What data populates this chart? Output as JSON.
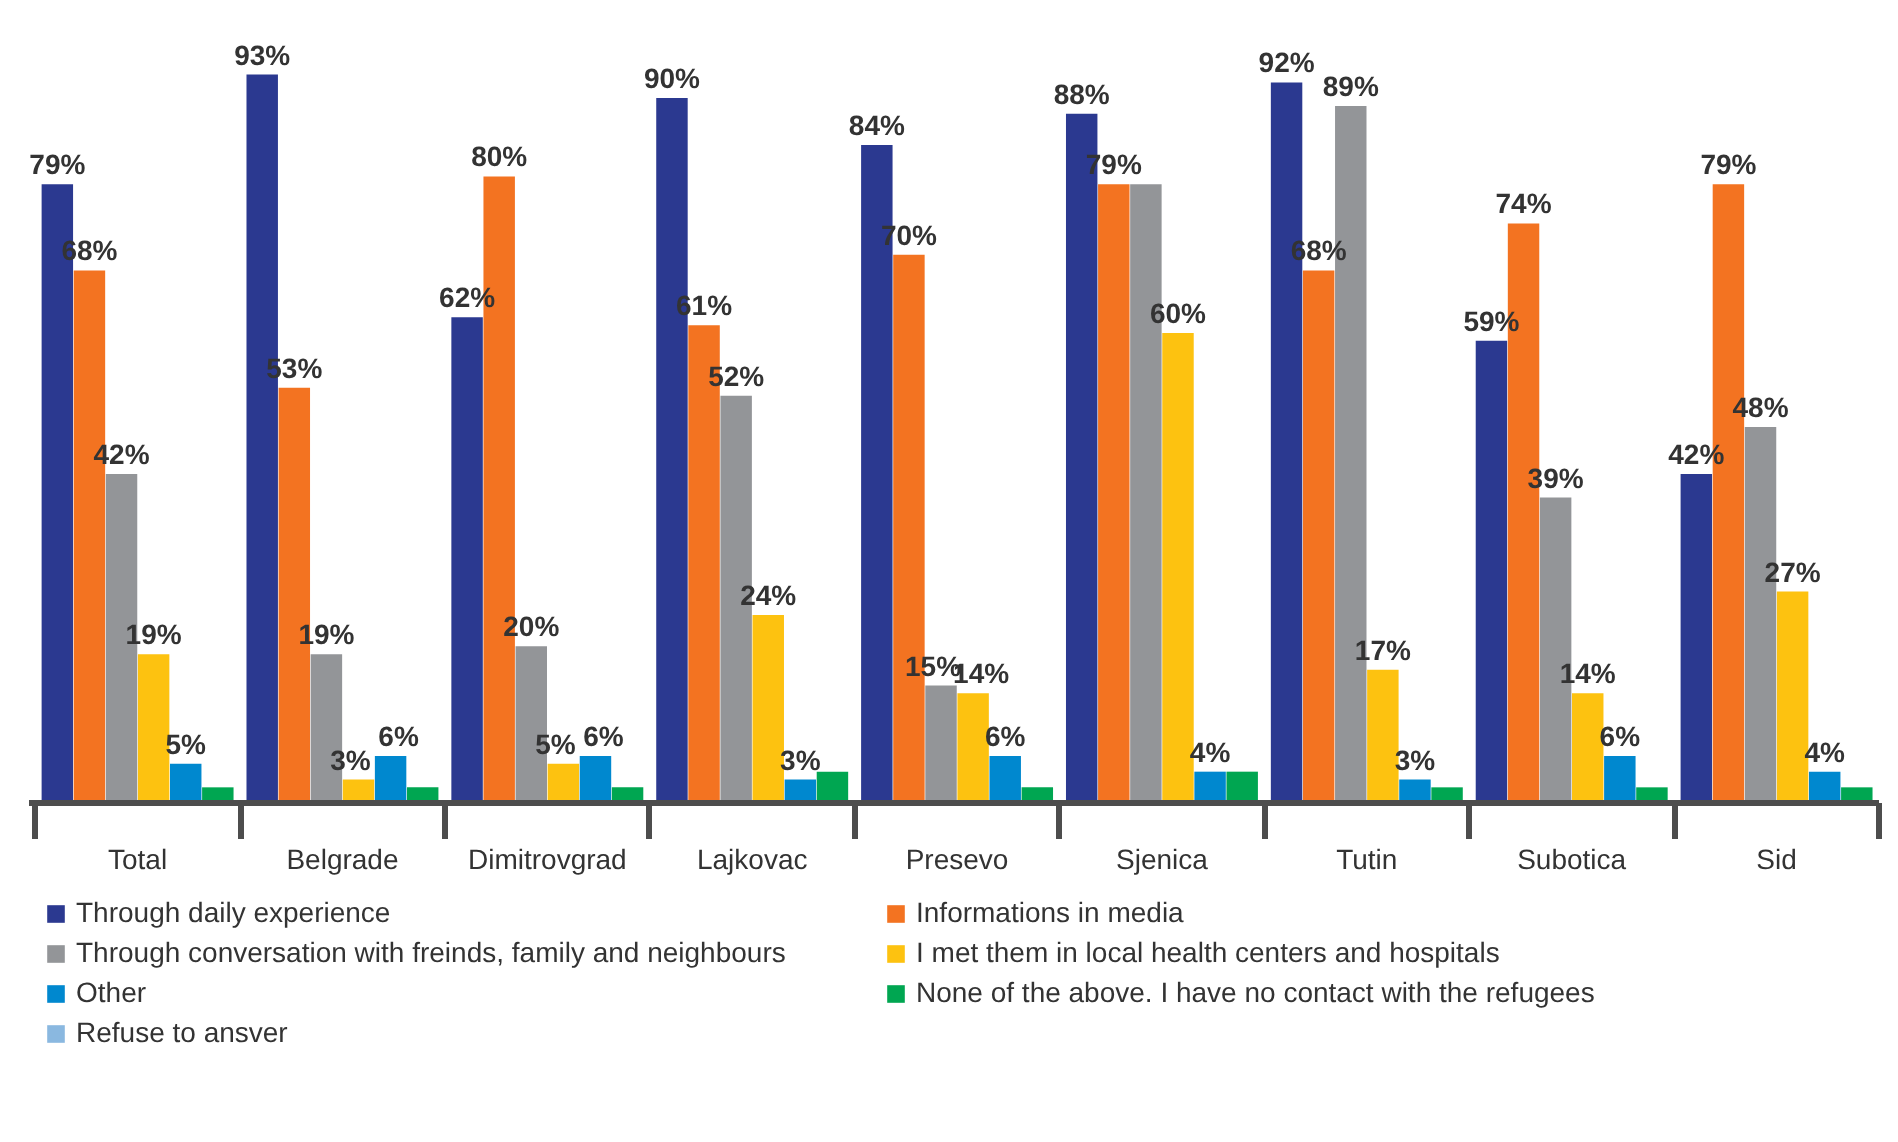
{
  "chart_data": {
    "type": "bar",
    "categories": [
      "Total",
      "Belgrade",
      "Dimitrovgrad",
      "Lajkovac",
      "Presevo",
      "Sjenica",
      "Tutin",
      "Subotica",
      "Sid"
    ],
    "series": [
      {
        "name": "Through daily experience",
        "color": "#2b3990",
        "values": [
          79,
          93,
          62,
          90,
          84,
          88,
          92,
          59,
          42
        ],
        "value_labels": [
          "79%",
          "93%",
          "62%",
          "90%",
          "84%",
          "88%",
          "92%",
          "59%",
          "42%"
        ]
      },
      {
        "name": "Informations in media",
        "color": "#f37321",
        "values": [
          68,
          53,
          80,
          61,
          70,
          79,
          68,
          74,
          79
        ],
        "value_labels": [
          "68%",
          "53%",
          "80%",
          "61%",
          "70%",
          "79%",
          "68%",
          "74%",
          "79%"
        ]
      },
      {
        "name": "Through conversation with freinds, family and neighbours",
        "color": "#939598",
        "values": [
          42,
          19,
          20,
          52,
          15,
          79,
          89,
          39,
          48
        ],
        "value_labels": [
          "42%",
          "19%",
          "20%",
          "52%",
          "15%",
          null,
          "89%",
          "39%",
          "48%"
        ]
      },
      {
        "name": "I met them in local health centers and hospitals",
        "color": "#fdc210",
        "values": [
          19,
          3,
          5,
          24,
          14,
          60,
          17,
          14,
          27
        ],
        "value_labels": [
          "19%",
          "3%",
          "5%",
          "24%",
          "14%",
          "60%",
          "17%",
          "14%",
          "27%"
        ]
      },
      {
        "name": "Other",
        "color": "#0088cf",
        "values": [
          5,
          6,
          6,
          3,
          6,
          4,
          3,
          6,
          4
        ],
        "value_labels": [
          "5%",
          "6%",
          "6%",
          "3%",
          "6%",
          "4%",
          "3%",
          "6%",
          "4%"
        ]
      },
      {
        "name": "None of the above. I have no contact with the refugees",
        "color": "#00a651",
        "values": [
          2,
          2,
          2,
          4,
          2,
          4,
          2,
          2,
          2
        ],
        "value_labels": [
          null,
          null,
          null,
          null,
          null,
          null,
          null,
          null,
          null
        ]
      },
      {
        "name": "Refuse to ansver",
        "color": "#8ab8e0",
        "values": [
          null,
          null,
          null,
          null,
          null,
          null,
          null,
          null,
          null
        ]
      }
    ],
    "legend": "bottom",
    "grid": false,
    "tick_labels": "x"
  }
}
